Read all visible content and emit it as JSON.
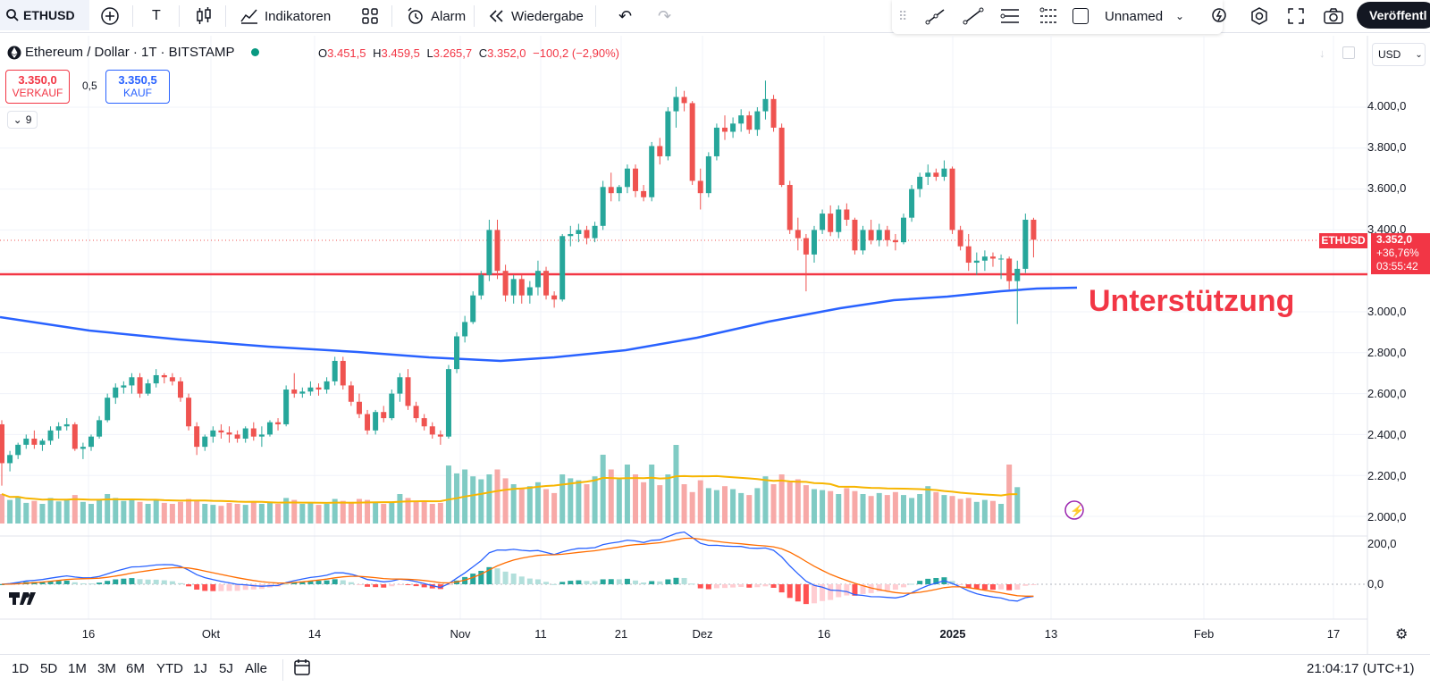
{
  "toolbar": {
    "symbol": "ETHUSD",
    "text_tool": "T",
    "indicators": "Indikatoren",
    "alarm": "Alarm",
    "replay": "Wiedergabe",
    "layout_name": "Unnamed",
    "publish": "Veröffentl"
  },
  "legend": {
    "title": "Ethereum / Dollar · 1T · BITSTAMP",
    "o_label": "O",
    "o": "3.451,5",
    "h_label": "H",
    "h": "3.459,5",
    "l_label": "L",
    "l": "3.265,7",
    "c_label": "C",
    "c": "3.352,0",
    "change": "−100,2 (−2,90%)"
  },
  "trade": {
    "sell_price": "3.350,0",
    "sell_label": "VERKAUF",
    "spread": "0,5",
    "buy_price": "3.350,5",
    "buy_label": "KAUF",
    "indicator_count": "9"
  },
  "currency": "USD",
  "price_axis": [
    "4.000,0",
    "3.800,0",
    "3.600,0",
    "3.400,0",
    "3.000,0",
    "2.800,0",
    "2.600,0",
    "2.400,0",
    "2.200,0",
    "2.000,0"
  ],
  "macd_axis": [
    "200,0",
    "0,0"
  ],
  "price_tag": {
    "symbol": "ETHUSD",
    "price": "3.352,0",
    "change": "+36,76%",
    "timer": "03:55:42"
  },
  "annotation": "Unterstützung",
  "time_axis": [
    "16",
    "Okt",
    "14",
    "Nov",
    "11",
    "21",
    "Dez",
    "16",
    "2025",
    "13",
    "Feb",
    "17"
  ],
  "ranges": [
    "1D",
    "5D",
    "1M",
    "3M",
    "6M",
    "YTD",
    "1J",
    "5J",
    "Alle"
  ],
  "clock": "21:04:17 (UTC+1)",
  "colors": {
    "up": "#26a69a",
    "down": "#ef5350",
    "ma": "#2962ff",
    "support": "#f23645",
    "vol_ma": "#f7b500",
    "macd_signal": "#ff6d00"
  },
  "chart_data": {
    "type": "candlestick",
    "x_start_label": "2024-09-05",
    "ylim": [
      1900,
      4150
    ],
    "support_level": 3170,
    "candles": [
      [
        2450,
        2470,
        2150,
        2260
      ],
      [
        2260,
        2320,
        2220,
        2300
      ],
      [
        2300,
        2360,
        2280,
        2350
      ],
      [
        2350,
        2400,
        2330,
        2380
      ],
      [
        2380,
        2420,
        2330,
        2350
      ],
      [
        2350,
        2380,
        2320,
        2370
      ],
      [
        2370,
        2440,
        2350,
        2420
      ],
      [
        2420,
        2460,
        2380,
        2440
      ],
      [
        2440,
        2480,
        2420,
        2450
      ],
      [
        2450,
        2460,
        2320,
        2330
      ],
      [
        2330,
        2360,
        2280,
        2340
      ],
      [
        2340,
        2400,
        2320,
        2390
      ],
      [
        2390,
        2490,
        2380,
        2470
      ],
      [
        2470,
        2600,
        2460,
        2580
      ],
      [
        2580,
        2650,
        2550,
        2630
      ],
      [
        2630,
        2660,
        2600,
        2640
      ],
      [
        2640,
        2700,
        2600,
        2680
      ],
      [
        2680,
        2700,
        2580,
        2600
      ],
      [
        2600,
        2670,
        2590,
        2650
      ],
      [
        2650,
        2720,
        2630,
        2690
      ],
      [
        2690,
        2700,
        2650,
        2680
      ],
      [
        2680,
        2700,
        2640,
        2660
      ],
      [
        2660,
        2680,
        2560,
        2580
      ],
      [
        2580,
        2600,
        2420,
        2440
      ],
      [
        2440,
        2460,
        2300,
        2340
      ],
      [
        2340,
        2400,
        2320,
        2390
      ],
      [
        2390,
        2440,
        2360,
        2420
      ],
      [
        2420,
        2450,
        2380,
        2410
      ],
      [
        2410,
        2440,
        2360,
        2400
      ],
      [
        2400,
        2420,
        2360,
        2380
      ],
      [
        2380,
        2440,
        2360,
        2430
      ],
      [
        2430,
        2460,
        2370,
        2390
      ],
      [
        2390,
        2440,
        2340,
        2400
      ],
      [
        2400,
        2470,
        2390,
        2460
      ],
      [
        2460,
        2480,
        2420,
        2450
      ],
      [
        2450,
        2640,
        2440,
        2620
      ],
      [
        2620,
        2700,
        2580,
        2600
      ],
      [
        2600,
        2630,
        2580,
        2610
      ],
      [
        2610,
        2660,
        2590,
        2630
      ],
      [
        2630,
        2650,
        2590,
        2620
      ],
      [
        2620,
        2680,
        2600,
        2660
      ],
      [
        2660,
        2780,
        2640,
        2760
      ],
      [
        2760,
        2780,
        2620,
        2640
      ],
      [
        2640,
        2660,
        2540,
        2560
      ],
      [
        2560,
        2600,
        2480,
        2500
      ],
      [
        2500,
        2520,
        2400,
        2420
      ],
      [
        2420,
        2520,
        2400,
        2510
      ],
      [
        2510,
        2540,
        2460,
        2480
      ],
      [
        2480,
        2620,
        2470,
        2600
      ],
      [
        2600,
        2700,
        2560,
        2680
      ],
      [
        2680,
        2720,
        2520,
        2540
      ],
      [
        2540,
        2560,
        2460,
        2480
      ],
      [
        2480,
        2500,
        2420,
        2440
      ],
      [
        2440,
        2460,
        2380,
        2400
      ],
      [
        2400,
        2420,
        2350,
        2390
      ],
      [
        2390,
        2740,
        2380,
        2720
      ],
      [
        2720,
        2900,
        2700,
        2880
      ],
      [
        2880,
        2980,
        2850,
        2950
      ],
      [
        2950,
        3100,
        2940,
        3080
      ],
      [
        3080,
        3200,
        3060,
        3180
      ],
      [
        3180,
        3450,
        3150,
        3400
      ],
      [
        3400,
        3450,
        3160,
        3200
      ],
      [
        3200,
        3230,
        3050,
        3080
      ],
      [
        3080,
        3180,
        3040,
        3160
      ],
      [
        3160,
        3180,
        3040,
        3080
      ],
      [
        3080,
        3150,
        3040,
        3120
      ],
      [
        3120,
        3250,
        3080,
        3200
      ],
      [
        3200,
        3220,
        3060,
        3080
      ],
      [
        3080,
        3100,
        3020,
        3060
      ],
      [
        3060,
        3380,
        3050,
        3370
      ],
      [
        3370,
        3420,
        3320,
        3380
      ],
      [
        3380,
        3430,
        3340,
        3400
      ],
      [
        3400,
        3420,
        3330,
        3360
      ],
      [
        3360,
        3440,
        3340,
        3420
      ],
      [
        3420,
        3640,
        3400,
        3610
      ],
      [
        3610,
        3680,
        3540,
        3580
      ],
      [
        3580,
        3620,
        3540,
        3610
      ],
      [
        3610,
        3720,
        3580,
        3700
      ],
      [
        3700,
        3720,
        3560,
        3590
      ],
      [
        3590,
        3620,
        3540,
        3560
      ],
      [
        3560,
        3830,
        3540,
        3810
      ],
      [
        3810,
        3850,
        3720,
        3760
      ],
      [
        3760,
        4000,
        3740,
        3980
      ],
      [
        3980,
        4100,
        3900,
        4050
      ],
      [
        4050,
        4080,
        3980,
        4020
      ],
      [
        4020,
        4030,
        3620,
        3640
      ],
      [
        3640,
        3700,
        3500,
        3580
      ],
      [
        3580,
        3780,
        3560,
        3760
      ],
      [
        3760,
        3920,
        3740,
        3900
      ],
      [
        3900,
        3960,
        3840,
        3880
      ],
      [
        3880,
        3950,
        3850,
        3920
      ],
      [
        3920,
        3990,
        3880,
        3960
      ],
      [
        3960,
        3980,
        3870,
        3890
      ],
      [
        3890,
        4000,
        3860,
        3980
      ],
      [
        3980,
        4130,
        3940,
        4040
      ],
      [
        4040,
        4060,
        3880,
        3900
      ],
      [
        3900,
        3920,
        3610,
        3620
      ],
      [
        3620,
        3640,
        3380,
        3400
      ],
      [
        3400,
        3460,
        3300,
        3360
      ],
      [
        3360,
        3380,
        3100,
        3280
      ],
      [
        3280,
        3420,
        3240,
        3400
      ],
      [
        3400,
        3500,
        3380,
        3480
      ],
      [
        3480,
        3520,
        3370,
        3390
      ],
      [
        3390,
        3520,
        3360,
        3500
      ],
      [
        3500,
        3530,
        3420,
        3450
      ],
      [
        3450,
        3460,
        3280,
        3300
      ],
      [
        3300,
        3420,
        3280,
        3400
      ],
      [
        3400,
        3450,
        3330,
        3350
      ],
      [
        3350,
        3430,
        3320,
        3400
      ],
      [
        3400,
        3420,
        3320,
        3350
      ],
      [
        3350,
        3380,
        3300,
        3340
      ],
      [
        3340,
        3480,
        3330,
        3460
      ],
      [
        3460,
        3620,
        3440,
        3600
      ],
      [
        3600,
        3680,
        3560,
        3660
      ],
      [
        3660,
        3720,
        3620,
        3680
      ],
      [
        3680,
        3700,
        3640,
        3660
      ],
      [
        3660,
        3740,
        3640,
        3700
      ],
      [
        3700,
        3710,
        3380,
        3400
      ],
      [
        3400,
        3420,
        3300,
        3320
      ],
      [
        3320,
        3380,
        3200,
        3240
      ],
      [
        3240,
        3290,
        3180,
        3250
      ],
      [
        3250,
        3300,
        3200,
        3270
      ],
      [
        3270,
        3290,
        3220,
        3260
      ],
      [
        3260,
        3280,
        3160,
        3260
      ],
      [
        3260,
        3270,
        3110,
        3150
      ],
      [
        3150,
        3250,
        2940,
        3210
      ],
      [
        3210,
        3480,
        3190,
        3450
      ],
      [
        3450,
        3459.5,
        3265.7,
        3352
      ]
    ],
    "volumes": [
      60,
      48,
      55,
      42,
      46,
      40,
      52,
      45,
      50,
      58,
      44,
      40,
      48,
      60,
      52,
      46,
      50,
      44,
      40,
      48,
      42,
      40,
      44,
      50,
      46,
      40,
      38,
      36,
      42,
      40,
      38,
      44,
      40,
      42,
      40,
      52,
      48,
      40,
      42,
      38,
      40,
      50,
      46,
      44,
      50,
      48,
      44,
      40,
      42,
      60,
      52,
      46,
      44,
      40,
      42,
      118,
      102,
      110,
      96,
      90,
      100,
      110,
      92,
      80,
      72,
      76,
      84,
      70,
      62,
      100,
      92,
      88,
      80,
      96,
      140,
      110,
      90,
      120,
      100,
      84,
      120,
      78,
      100,
      160,
      80,
      64,
      88,
      72,
      68,
      76,
      70,
      62,
      58,
      72,
      96,
      80,
      100,
      84,
      90,
      78,
      70,
      68,
      66,
      60,
      72,
      66,
      60,
      56,
      62,
      58,
      64,
      58,
      52,
      60,
      76,
      64,
      58,
      56,
      50,
      52,
      44,
      48,
      46,
      40,
      120,
      74
    ]
  }
}
